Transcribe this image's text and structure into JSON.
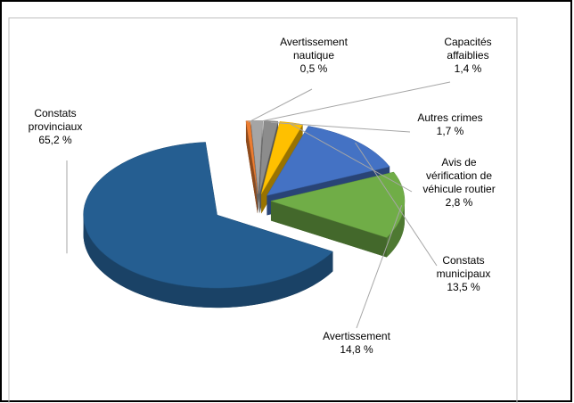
{
  "chart_data": {
    "type": "pie3d",
    "categories": [
      "Constats provinciaux",
      "Avertissement nautique",
      "Capacités affaiblies",
      "Autres crimes",
      "Avis de vérification de véhicule routier",
      "Constats municipaux",
      "Avertissement"
    ],
    "values": [
      65.2,
      0.5,
      1.4,
      1.7,
      2.8,
      13.5,
      14.8
    ],
    "value_labels": [
      "65,2 %",
      "0,5 %",
      "1,4 %",
      "1,7 %",
      "2,8 %",
      "13,5 %",
      "14,8 %"
    ],
    "colors": [
      "#255e91",
      "#ed7d31",
      "#a5a5a5",
      "#8c8c8c",
      "#ffc000",
      "#4472c4",
      "#70ad47"
    ]
  }
}
